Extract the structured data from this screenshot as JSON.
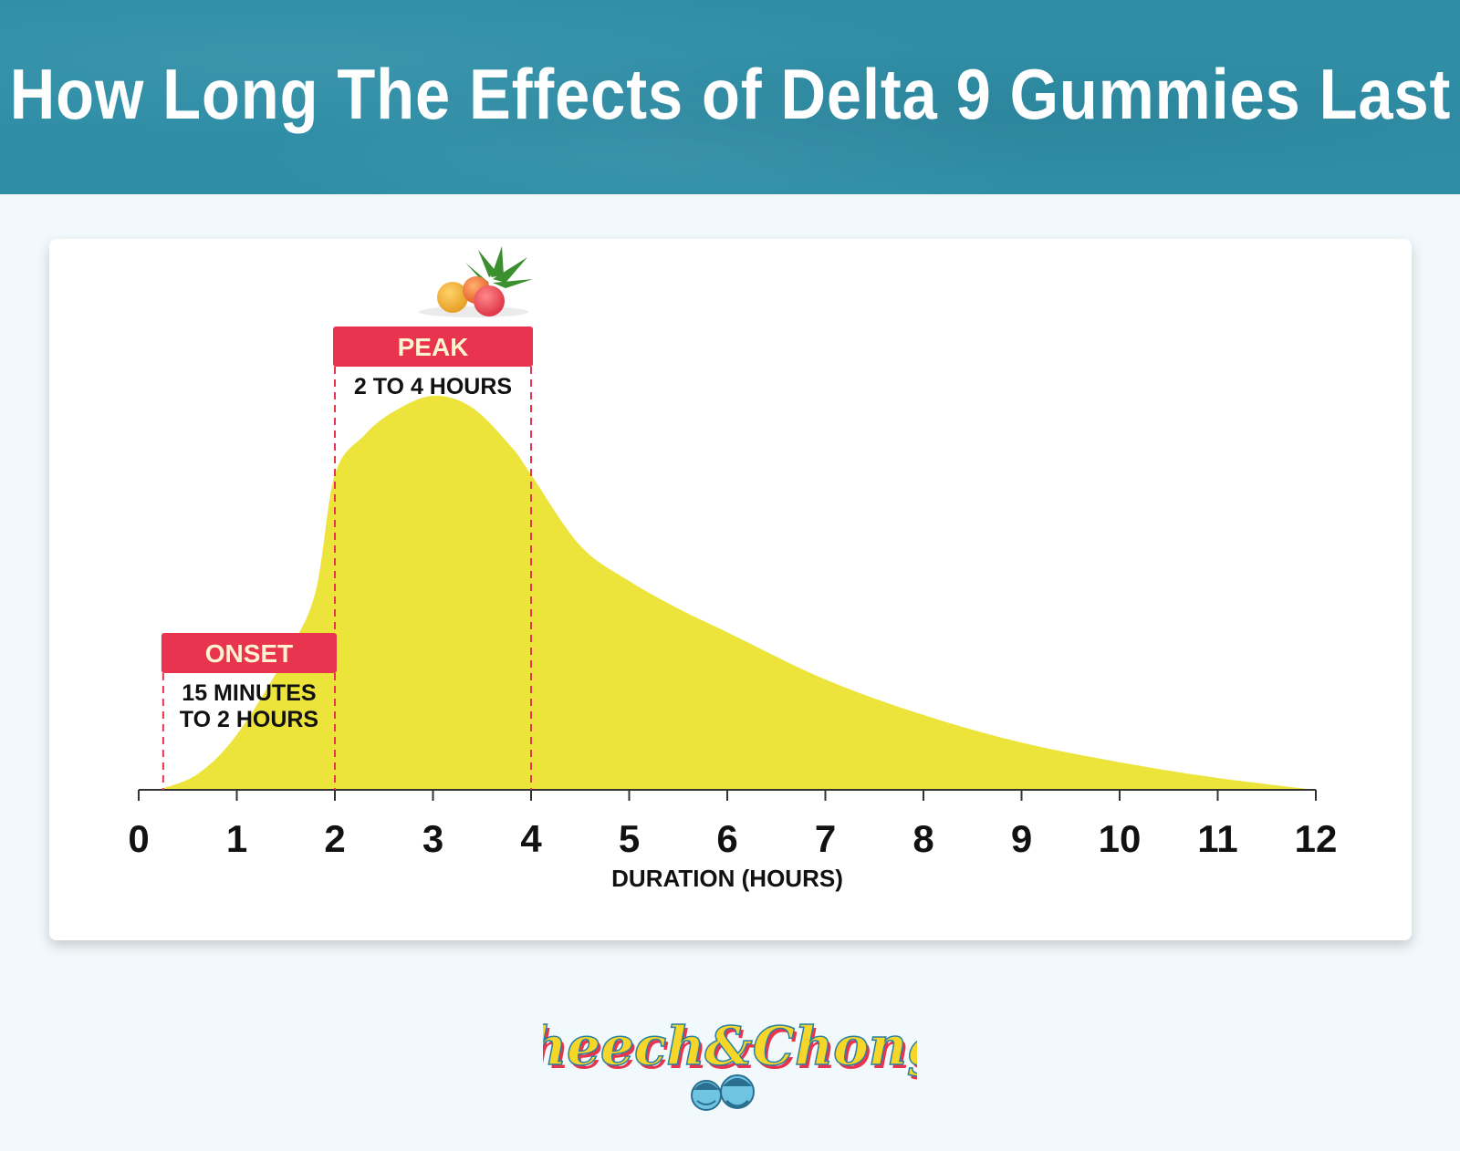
{
  "header": {
    "title": "How Long The Effects of Delta 9 Gummies Last"
  },
  "chart_data": {
    "type": "area",
    "x": [
      0.2,
      0.6,
      1.0,
      1.5,
      1.8,
      2.0,
      2.3,
      2.6,
      3.0,
      3.4,
      3.8,
      4.0,
      4.5,
      5.0,
      5.5,
      6.0,
      7.0,
      8.0,
      9.0,
      10.0,
      11.0,
      12.0
    ],
    "y": [
      0,
      4,
      14,
      34,
      50,
      80,
      90,
      96,
      100,
      97,
      87,
      80,
      62,
      53,
      46,
      40,
      28,
      19,
      12,
      7,
      3,
      0
    ],
    "xlabel": "DURATION (HOURS)",
    "xlim": [
      0,
      12
    ],
    "ylim": [
      0,
      100
    ],
    "xticks": [
      "0",
      "1",
      "2",
      "3",
      "4",
      "5",
      "6",
      "7",
      "8",
      "9",
      "10",
      "11",
      "12"
    ],
    "fill_color": "#ece43b",
    "grid": false,
    "annotations": [
      {
        "label": "ONSET",
        "sublabel_lines": [
          "15 MINUTES",
          "TO 2 HOURS"
        ],
        "x_start": 0.25,
        "x_end": 2
      },
      {
        "label": "PEAK",
        "sublabel_lines": [
          "2 TO 4 HOURS"
        ],
        "x_start": 2,
        "x_end": 4
      }
    ],
    "label_color": "#e8344f"
  },
  "footer": {
    "brand_logo": "Cheech&Chongs"
  }
}
